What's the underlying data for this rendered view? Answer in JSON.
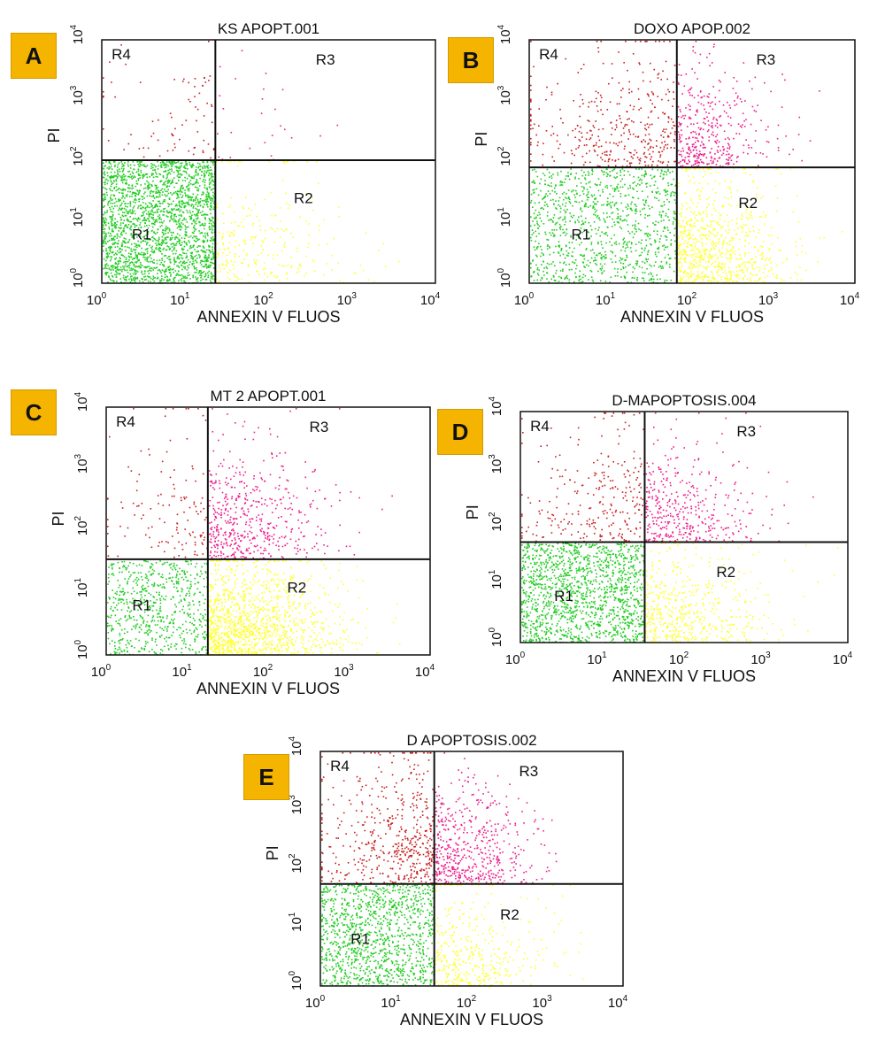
{
  "figure": {
    "x_axis_label": "ANNEXIN V FLUOS",
    "y_axis_label": "PI",
    "tick_labels": [
      "10",
      "10",
      "10",
      "10",
      "10"
    ],
    "tick_exponents": [
      "0",
      "1",
      "2",
      "3",
      "4"
    ],
    "region_labels": [
      "R1",
      "R2",
      "R3",
      "R4"
    ],
    "colors": {
      "R1": "#22cc22",
      "R2": "#ffff33",
      "R3": "#ee1c8c",
      "R4": "#c81e1e",
      "badge": "#f4b400"
    }
  },
  "chart_data": [
    {
      "panel": "A",
      "title": "KS APOPT.001",
      "type": "scatter",
      "xlabel": "ANNEXIN V FLUOS",
      "ylabel": "PI",
      "xscale": "log",
      "yscale": "log",
      "xlim": [
        1,
        10000
      ],
      "ylim": [
        1,
        10000
      ],
      "gate_x": 23,
      "gate_y": 105,
      "density": {
        "R1": 0.86,
        "R2": 0.1,
        "R3": 0.01,
        "R4": 0.03
      }
    },
    {
      "panel": "B",
      "title": "DOXO APOP.002",
      "type": "scatter",
      "xlabel": "ANNEXIN V FLUOS",
      "ylabel": "PI",
      "xscale": "log",
      "yscale": "log",
      "xlim": [
        1,
        10000
      ],
      "ylim": [
        1,
        10000
      ],
      "gate_x": 65,
      "gate_y": 80,
      "density": {
        "R1": 0.4,
        "R2": 0.3,
        "R3": 0.15,
        "R4": 0.15
      }
    },
    {
      "panel": "C",
      "title": "MT 2 APOPT.001",
      "type": "scatter",
      "xlabel": "ANNEXIN V FLUOS",
      "ylabel": "PI",
      "xscale": "log",
      "yscale": "log",
      "xlim": [
        1,
        10000
      ],
      "ylim": [
        1,
        10000
      ],
      "gate_x": 18,
      "gate_y": 35,
      "density": {
        "R1": 0.25,
        "R2": 0.5,
        "R3": 0.2,
        "R4": 0.05
      }
    },
    {
      "panel": "D",
      "title": "D-MAPOPTOSIS.004",
      "type": "scatter",
      "xlabel": "ANNEXIN V FLUOS",
      "ylabel": "PI",
      "xscale": "log",
      "yscale": "log",
      "xlim": [
        1,
        10000
      ],
      "ylim": [
        1,
        10000
      ],
      "gate_x": 33,
      "gate_y": 55,
      "density": {
        "R1": 0.55,
        "R2": 0.2,
        "R3": 0.15,
        "R4": 0.1
      }
    },
    {
      "panel": "E",
      "title": "D APOPTOSIS.002",
      "type": "scatter",
      "xlabel": "ANNEXIN V FLUOS",
      "ylabel": "PI",
      "xscale": "log",
      "yscale": "log",
      "xlim": [
        1,
        10000
      ],
      "ylim": [
        1,
        10000
      ],
      "gate_x": 32,
      "gate_y": 55,
      "density": {
        "R1": 0.45,
        "R2": 0.15,
        "R3": 0.2,
        "R4": 0.2
      }
    }
  ]
}
